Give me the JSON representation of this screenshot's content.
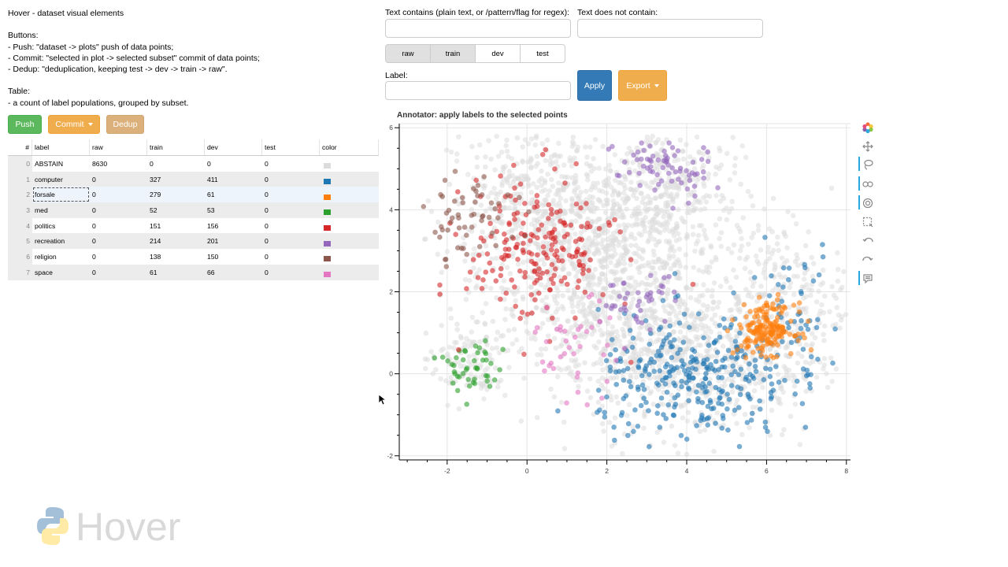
{
  "description": {
    "lines": [
      "Hover - dataset visual elements",
      "",
      "Buttons:",
      "- Push: \"dataset -> plots\" push of data points;",
      "- Commit: \"selected in plot -> selected subset\" commit of data points;",
      "- Dedup: \"deduplication, keeping test -> dev -> train -> raw\".",
      "",
      "Table:",
      "- a count of label populations, grouped by subset."
    ]
  },
  "buttons": {
    "push": "Push",
    "commit": "Commit",
    "dedup": "Dedup",
    "apply": "Apply",
    "export": "Export"
  },
  "table": {
    "headers": [
      "#",
      "label",
      "raw",
      "train",
      "dev",
      "test",
      "color"
    ],
    "rows": [
      {
        "idx": "0",
        "label": "ABSTAIN",
        "raw": "8630",
        "train": "0",
        "dev": "0",
        "test": "0",
        "color": "#dcdcdc"
      },
      {
        "idx": "1",
        "label": "computer",
        "raw": "0",
        "train": "327",
        "dev": "411",
        "test": "0",
        "color": "#1f77b4"
      },
      {
        "idx": "2",
        "label": "forsale",
        "raw": "0",
        "train": "279",
        "dev": "61",
        "test": "0",
        "color": "#ff7f0e"
      },
      {
        "idx": "3",
        "label": "med",
        "raw": "0",
        "train": "52",
        "dev": "53",
        "test": "0",
        "color": "#2ca02c"
      },
      {
        "idx": "4",
        "label": "politics",
        "raw": "0",
        "train": "151",
        "dev": "156",
        "test": "0",
        "color": "#d62728"
      },
      {
        "idx": "5",
        "label": "recreation",
        "raw": "0",
        "train": "214",
        "dev": "201",
        "test": "0",
        "color": "#9467bd"
      },
      {
        "idx": "6",
        "label": "religion",
        "raw": "0",
        "train": "138",
        "dev": "150",
        "test": "0",
        "color": "#8c564b"
      },
      {
        "idx": "7",
        "label": "space",
        "raw": "0",
        "train": "61",
        "dev": "66",
        "test": "0",
        "color": "#e377c2"
      }
    ]
  },
  "filters": {
    "contains_label": "Text contains (plain text, or /pattern/flag for regex):",
    "contains_value": "",
    "not_contains_label": "Text does not contain:",
    "not_contains_value": ""
  },
  "subsets": [
    {
      "label": "raw",
      "active": true
    },
    {
      "label": "train",
      "active": true
    },
    {
      "label": "dev",
      "active": false
    },
    {
      "label": "test",
      "active": false
    }
  ],
  "label_input": {
    "label": "Label:",
    "value": ""
  },
  "toolbar": {
    "icons": [
      "bokeh-logo-icon",
      "pan-icon",
      "lasso-select-icon",
      "poly-select-icon",
      "tap-icon",
      "box-select-icon",
      "undo-icon",
      "redo-icon",
      "hover-icon"
    ]
  },
  "chart_data": {
    "type": "scatter",
    "title": "Annotator: apply labels to the selected points",
    "xlabel": "",
    "ylabel": "",
    "xlim": [
      -3.2,
      8.3
    ],
    "ylim": [
      -2.1,
      6.1
    ],
    "xticks": [
      -2,
      0,
      2,
      4,
      6,
      8
    ],
    "yticks": [
      -2,
      0,
      2,
      4,
      6
    ],
    "series": [
      {
        "name": "ABSTAIN",
        "color": "#dcdcdc",
        "clusters": [
          {
            "cx": 1.8,
            "cy": 3.0,
            "sx": 1.5,
            "sy": 1.2,
            "n": 900
          },
          {
            "cx": 0.0,
            "cy": 4.2,
            "sx": 1.0,
            "sy": 1.0,
            "n": 300
          },
          {
            "cx": 3.5,
            "cy": 4.6,
            "sx": 0.9,
            "sy": 0.8,
            "n": 260
          },
          {
            "cx": 4.5,
            "cy": 0.2,
            "sx": 1.4,
            "sy": 0.9,
            "n": 500
          },
          {
            "cx": 6.2,
            "cy": 1.8,
            "sx": 0.9,
            "sy": 1.0,
            "n": 260
          },
          {
            "cx": -1.5,
            "cy": 0.3,
            "sx": 0.6,
            "sy": 0.5,
            "n": 120
          },
          {
            "cx": 2.5,
            "cy": 1.0,
            "sx": 1.2,
            "sy": 0.8,
            "n": 300
          }
        ]
      },
      {
        "name": "computer",
        "color": "#1f77b4",
        "clusters": [
          {
            "cx": 4.2,
            "cy": -0.2,
            "sx": 1.2,
            "sy": 0.8,
            "n": 300
          },
          {
            "cx": 6.6,
            "cy": 1.4,
            "sx": 0.6,
            "sy": 0.9,
            "n": 60
          }
        ]
      },
      {
        "name": "forsale",
        "color": "#ff7f0e",
        "clusters": [
          {
            "cx": 6.0,
            "cy": 1.1,
            "sx": 0.35,
            "sy": 0.3,
            "n": 170
          }
        ]
      },
      {
        "name": "med",
        "color": "#2ca02c",
        "clusters": [
          {
            "cx": -1.4,
            "cy": 0.1,
            "sx": 0.45,
            "sy": 0.35,
            "n": 45
          }
        ]
      },
      {
        "name": "politics",
        "color": "#d62728",
        "clusters": [
          {
            "cx": 0.3,
            "cy": 3.0,
            "sx": 0.9,
            "sy": 0.9,
            "n": 200
          }
        ]
      },
      {
        "name": "recreation",
        "color": "#9467bd",
        "clusters": [
          {
            "cx": 3.4,
            "cy": 5.0,
            "sx": 0.6,
            "sy": 0.4,
            "n": 70
          },
          {
            "cx": 2.8,
            "cy": 1.8,
            "sx": 0.5,
            "sy": 0.3,
            "n": 40
          }
        ]
      },
      {
        "name": "religion",
        "color": "#8c564b",
        "clusters": [
          {
            "cx": -1.5,
            "cy": 3.7,
            "sx": 0.6,
            "sy": 0.5,
            "n": 60
          }
        ]
      },
      {
        "name": "space",
        "color": "#e377c2",
        "clusters": [
          {
            "cx": 1.2,
            "cy": 0.6,
            "sx": 0.6,
            "sy": 0.6,
            "n": 40
          }
        ]
      }
    ]
  },
  "logo": {
    "text": "Hover"
  }
}
